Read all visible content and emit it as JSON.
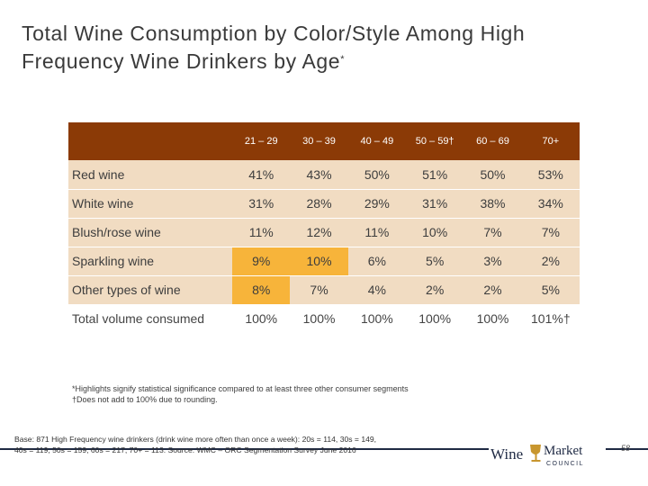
{
  "title": "Total Wine Consumption by Color/Style Among High Frequency Wine Drinkers by Age",
  "title_mark": "*",
  "table": {
    "columns": [
      "21 – 29",
      "30 – 39",
      "40 – 49",
      "50 – 59†",
      "60 – 69",
      "70+"
    ],
    "rows": [
      {
        "label": "Red wine",
        "values": [
          "41%",
          "43%",
          "50%",
          "51%",
          "50%",
          "53%"
        ],
        "highlight": []
      },
      {
        "label": "White wine",
        "values": [
          "31%",
          "28%",
          "29%",
          "31%",
          "38%",
          "34%"
        ],
        "highlight": []
      },
      {
        "label": "Blush/rose wine",
        "values": [
          "11%",
          "12%",
          "11%",
          "10%",
          "7%",
          "7%"
        ],
        "highlight": []
      },
      {
        "label": "Sparkling wine",
        "values": [
          "9%",
          "10%",
          "6%",
          "5%",
          "3%",
          "2%"
        ],
        "highlight": [
          0,
          1
        ]
      },
      {
        "label": "Other types of wine",
        "values": [
          "8%",
          "7%",
          "4%",
          "2%",
          "2%",
          "5%"
        ],
        "highlight": [
          0
        ]
      }
    ],
    "total": {
      "label": "Total volume consumed",
      "values": [
        "100%",
        "100%",
        "100%",
        "100%",
        "100%",
        "101%†"
      ]
    },
    "colors": {
      "header": "#8b3a06",
      "shaded_row": "#f1dcc2",
      "highlight": "#f7b43a"
    }
  },
  "footnotes": {
    "highlight_note": "*Highlights signify statistical significance compared to at least three other consumer segments",
    "rounding_note": "†Does not add to 100% due to rounding."
  },
  "base_note": {
    "line1": "Base: 871 High Frequency wine drinkers (drink wine more often than once a week): 20s = 114, 30s = 149,",
    "line2": "40s = 119, 50s = 159, 60s = 217, 70+ = 113.   Source: WMC – ORC Segmentation Survey June 2016"
  },
  "logo": {
    "word1": "Wine",
    "word2": "Market",
    "word3": "COUNCIL"
  },
  "page_number": "58"
}
